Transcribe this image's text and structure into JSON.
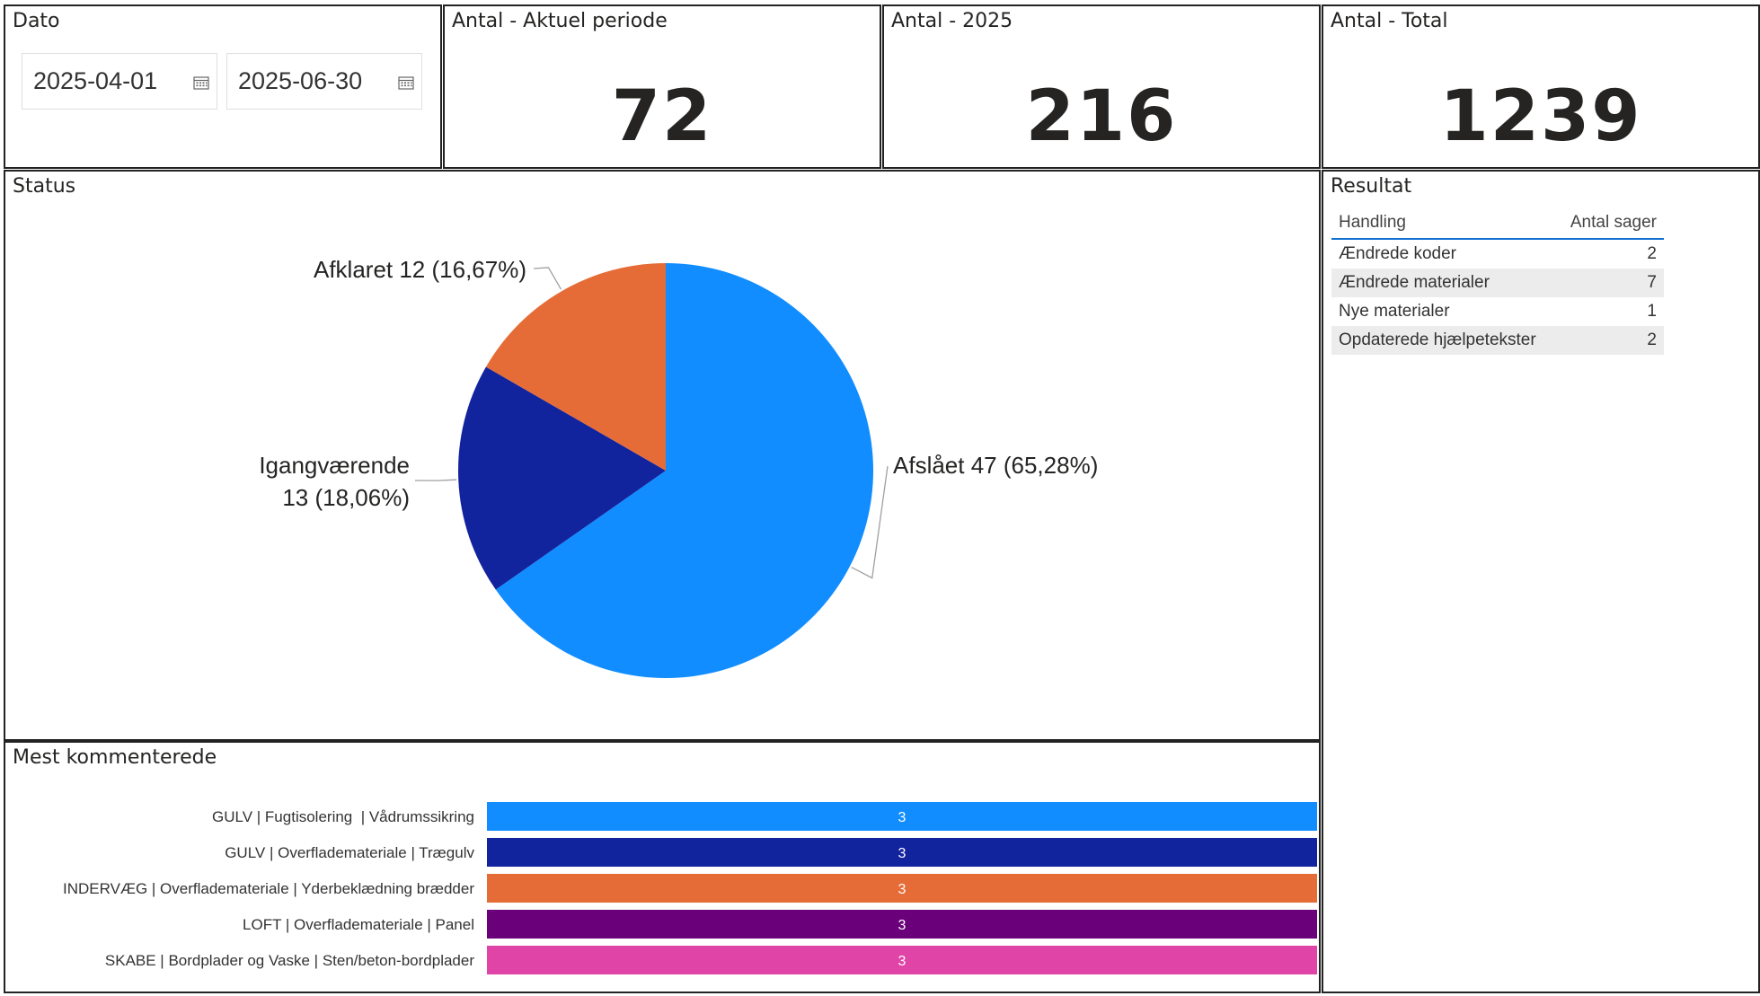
{
  "dato": {
    "title": "Dato",
    "from": "2025-04-01",
    "to": "2025-06-30"
  },
  "kpis": [
    {
      "title": "Antal - Aktuel periode",
      "value": "72"
    },
    {
      "title": "Antal - 2025",
      "value": "216"
    },
    {
      "title": "Antal - Total",
      "value": "1239"
    }
  ],
  "status": {
    "title": "Status"
  },
  "mest": {
    "title": "Mest kommenterede"
  },
  "resultat": {
    "title": "Resultat",
    "col_handling": "Handling",
    "col_antal": "Antal sager",
    "rows": [
      {
        "label": "Ændrede koder",
        "value": "2"
      },
      {
        "label": "Ændrede materialer",
        "value": "7"
      },
      {
        "label": "Nye materialer",
        "value": "1"
      },
      {
        "label": "Opdaterede hjælpetekster",
        "value": "2"
      }
    ]
  },
  "chart_data": [
    {
      "type": "pie",
      "title": "Status",
      "slices": [
        {
          "label": "Afslået",
          "value": 47,
          "percent": "65,28%",
          "text": "Afslået 47 (65,28%)",
          "color": "#118DFF"
        },
        {
          "label": "Igangværende",
          "value": 13,
          "percent": "18,06%",
          "text_line1": "Igangværende",
          "text_line2": "13 (18,06%)",
          "color": "#12239E"
        },
        {
          "label": "Afklaret",
          "value": 12,
          "percent": "16,67%",
          "text": "Afklaret 12 (16,67%)",
          "color": "#E66C37"
        }
      ]
    },
    {
      "type": "bar",
      "title": "Mest kommenterede",
      "orientation": "horizontal",
      "xlim": [
        0,
        3
      ],
      "categories": [
        "GULV | Fugtisolering  | Vådrumssikring",
        "GULV | Overflademateriale | Trægulv",
        "INDERVÆG | Overflademateriale | Yderbeklædning brædder",
        "LOFT | Overflademateriale | Panel",
        "SKABE | Bordplader og Vaske | Sten/beton-bordplader"
      ],
      "values": [
        3,
        3,
        3,
        3,
        3
      ],
      "colors": [
        "#118DFF",
        "#12239E",
        "#E66C37",
        "#6B007B",
        "#E044A7"
      ]
    }
  ]
}
